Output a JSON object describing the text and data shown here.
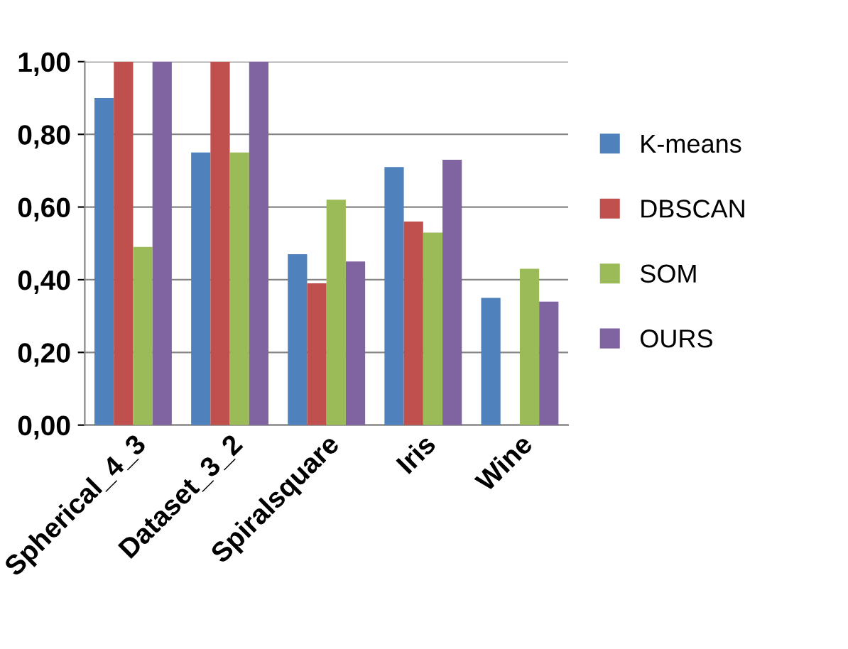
{
  "chart_data": {
    "type": "bar",
    "categories": [
      "Spherical_4_3",
      "Dataset_3_2",
      "Spiralsquare",
      "Iris",
      "Wine"
    ],
    "series": [
      {
        "name": "K-means",
        "color": "#4f81bd",
        "values": [
          0.9,
          0.75,
          0.47,
          0.71,
          0.35
        ]
      },
      {
        "name": "DBSCAN",
        "color": "#c0504d",
        "values": [
          1.0,
          1.0,
          0.39,
          0.56,
          null
        ]
      },
      {
        "name": "SOM",
        "color": "#9bbb59",
        "values": [
          0.49,
          0.75,
          0.62,
          0.53,
          0.43
        ]
      },
      {
        "name": "OURS",
        "color": "#8064a2",
        "values": [
          1.0,
          1.0,
          0.45,
          0.73,
          0.34
        ]
      }
    ],
    "ylim": [
      0,
      1.0
    ],
    "yticks": [
      {
        "value": 0,
        "label": "0,00"
      },
      {
        "value": 0.2,
        "label": "0,20"
      },
      {
        "value": 0.4,
        "label": "0,40"
      },
      {
        "value": 0.6,
        "label": "0,60"
      },
      {
        "value": 0.8,
        "label": "0,80"
      },
      {
        "value": 1.0,
        "label": "1,00"
      }
    ],
    "grid": "y",
    "legend": "right"
  }
}
